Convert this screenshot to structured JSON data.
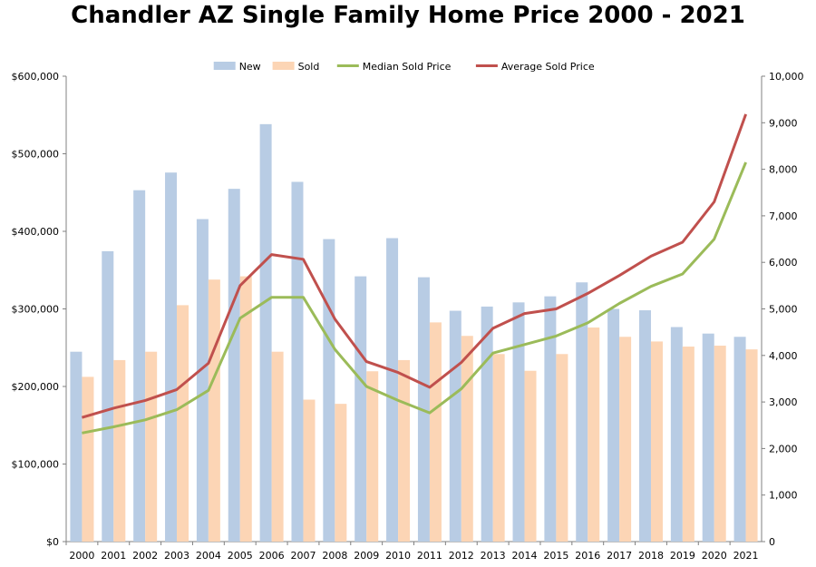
{
  "chart_data": {
    "type": "bar",
    "title": "Chandler AZ Single Family Home Price 2000 - 2021",
    "xlabel": "",
    "ylabel": "",
    "categories": [
      "2000",
      "2001",
      "2002",
      "2003",
      "2004",
      "2005",
      "2006",
      "2007",
      "2008",
      "2009",
      "2010",
      "2011",
      "2012",
      "2013",
      "2014",
      "2015",
      "2016",
      "2017",
      "2018",
      "2019",
      "2020",
      "2021"
    ],
    "y_left": {
      "min": 0,
      "max": 600000,
      "step": 100000,
      "tick_labels": [
        "$0",
        "$100,000",
        "$200,000",
        "$300,000",
        "$400,000",
        "$500,000",
        "$600,000"
      ]
    },
    "y_right": {
      "min": 0,
      "max": 10000,
      "step": 1000,
      "tick_labels": [
        "0",
        "1,000",
        "2,000",
        "3,000",
        "4,000",
        "5,000",
        "6,000",
        "7,000",
        "8,000",
        "9,000",
        "10,000"
      ]
    },
    "legend_position": "top",
    "grid": false,
    "series": [
      {
        "name": "New",
        "kind": "bar",
        "axis": "right",
        "color": "#b8cce4",
        "values": [
          4080,
          6240,
          7550,
          7930,
          6930,
          7580,
          8970,
          7730,
          6500,
          5700,
          6520,
          5680,
          4960,
          5050,
          5140,
          5270,
          5570,
          5000,
          4970,
          4610,
          4470,
          4400
        ]
      },
      {
        "name": "Sold",
        "kind": "bar",
        "axis": "right",
        "color": "#fcd5b5",
        "values": [
          3540,
          3900,
          4080,
          5080,
          5630,
          5700,
          4080,
          3050,
          2960,
          3660,
          3900,
          4710,
          4420,
          4030,
          3670,
          4030,
          4600,
          4400,
          4300,
          4190,
          4210,
          4130
        ]
      },
      {
        "name": "Median Sold Price",
        "kind": "line",
        "axis": "left",
        "color": "#9bbb59",
        "values": [
          140000,
          148000,
          157000,
          170000,
          195000,
          288000,
          315000,
          315000,
          248000,
          200000,
          182000,
          166000,
          197000,
          243000,
          254000,
          265000,
          282000,
          307000,
          329000,
          345000,
          390000,
          489000
        ]
      },
      {
        "name": "Average Sold Price",
        "kind": "line",
        "axis": "left",
        "color": "#c0504d",
        "values": [
          160000,
          172000,
          182000,
          196000,
          230000,
          330000,
          370000,
          364000,
          287000,
          232000,
          218000,
          199000,
          231000,
          275000,
          294000,
          300000,
          320000,
          343000,
          368000,
          386000,
          438000,
          551000
        ]
      }
    ]
  }
}
